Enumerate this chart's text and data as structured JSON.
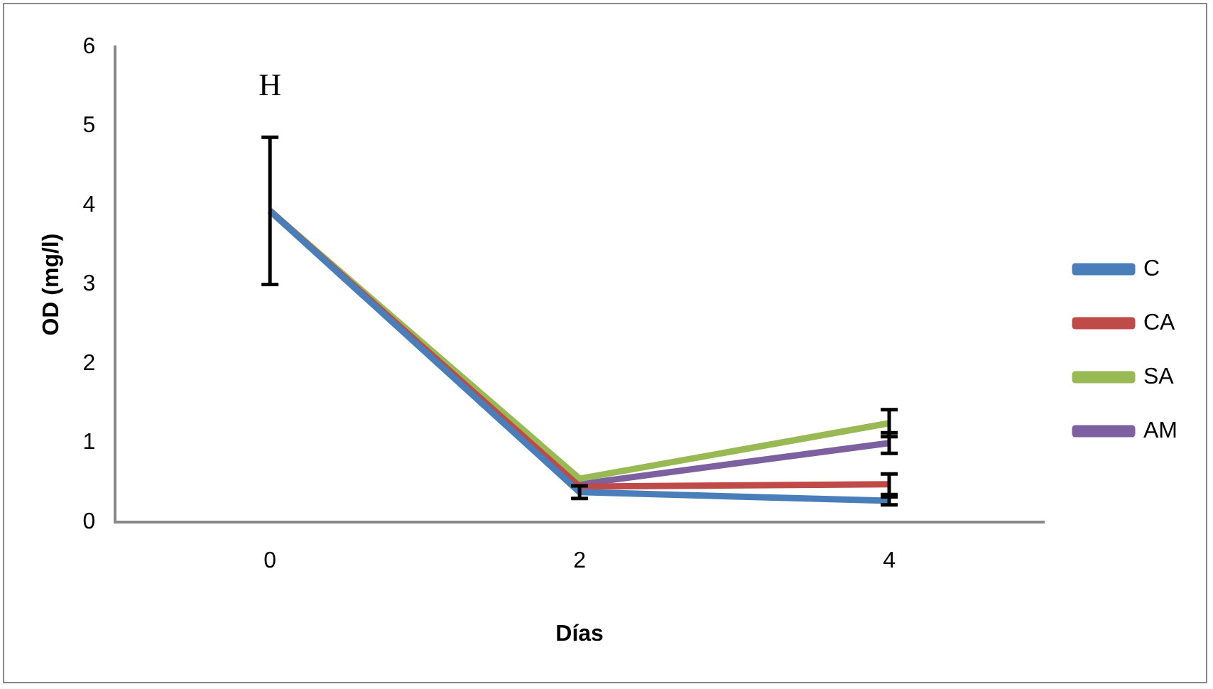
{
  "chart_data": {
    "type": "line",
    "xlabel": "Días",
    "ylabel": "OD (mg/l)",
    "categories": [
      "0",
      "2",
      "4"
    ],
    "ylim": [
      0,
      6
    ],
    "yticks": [
      0,
      1,
      2,
      3,
      4,
      5,
      6
    ],
    "grid": false,
    "legend": "right",
    "marker": "none",
    "line_style": "solid",
    "annotations": [
      "H"
    ],
    "series": [
      {
        "name": "C",
        "color": "#4a7ebb",
        "values": [
          3.93,
          0.38,
          0.27
        ],
        "errors": [
          null,
          0.08,
          0.05
        ]
      },
      {
        "name": "CA",
        "color": "#be4b48",
        "values": [
          3.93,
          0.45,
          0.48
        ],
        "errors": [
          null,
          null,
          0.13
        ]
      },
      {
        "name": "SA",
        "color": "#98b954",
        "values": [
          3.93,
          0.55,
          1.25
        ],
        "errors": [
          null,
          null,
          0.17
        ]
      },
      {
        "name": "AM",
        "color": "#7d60a0",
        "values": [
          3.93,
          0.48,
          1.0
        ],
        "errors": [
          0.93,
          null,
          0.13
        ]
      }
    ]
  }
}
